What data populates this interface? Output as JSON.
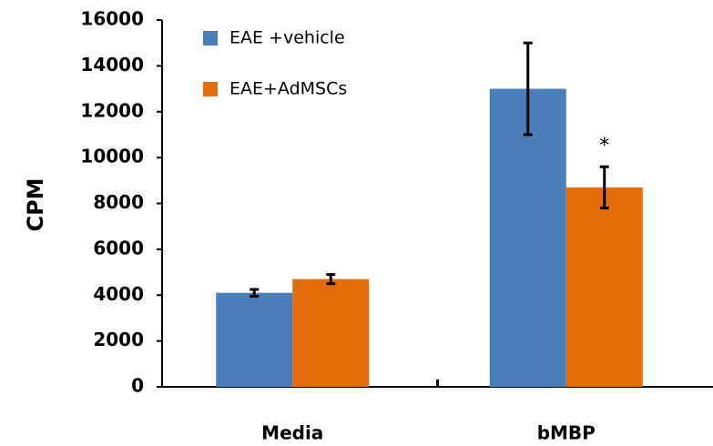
{
  "chart_data": {
    "type": "bar",
    "ylabel": "CPM",
    "categories": [
      "Media",
      "bMBP"
    ],
    "series": [
      {
        "name": "EAE +vehicle",
        "color": "#4a7ebb",
        "values": [
          4100,
          13000
        ],
        "errors": [
          150,
          2000
        ]
      },
      {
        "name": "EAE+AdMSCs",
        "color": "#e46c0a",
        "values": [
          4700,
          8700
        ],
        "errors": [
          200,
          900
        ]
      }
    ],
    "annotation": "*",
    "ylim": [
      0,
      16000
    ],
    "yticks": [
      0,
      2000,
      4000,
      6000,
      8000,
      10000,
      12000,
      14000,
      16000
    ]
  }
}
